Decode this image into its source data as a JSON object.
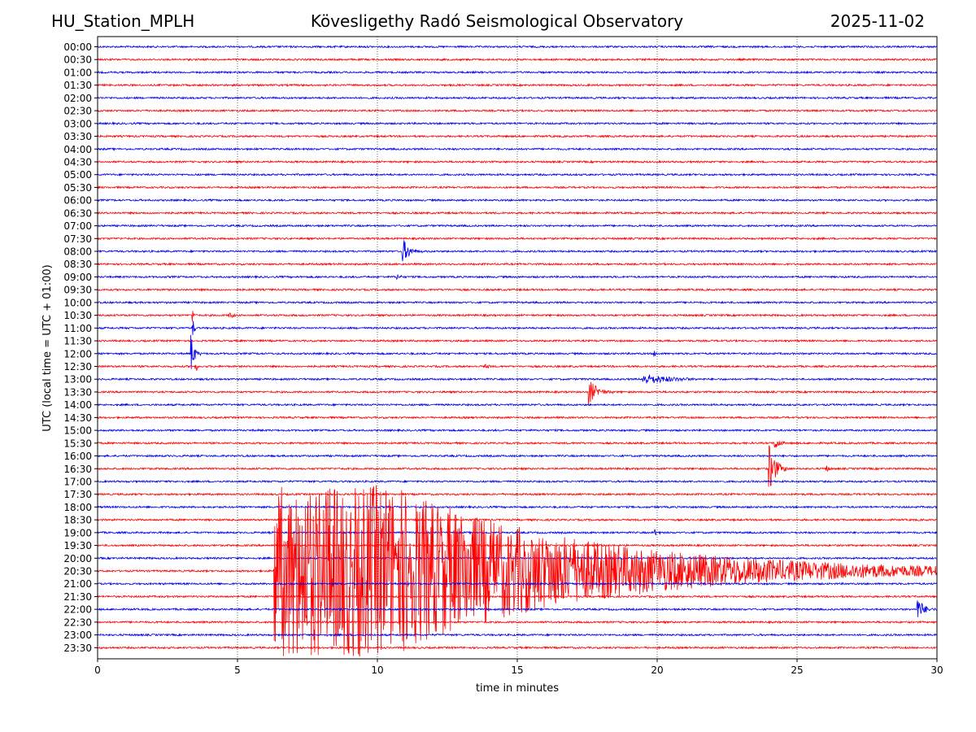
{
  "header": {
    "station": "HU_Station_MPLH",
    "observatory": "Kövesligethy Radó Seismological Observatory",
    "date": "2025-11-02"
  },
  "colors": {
    "even_trace": "#0000ee",
    "odd_trace": "#ff0000",
    "axes": "#000000",
    "grid": "#000000"
  },
  "chart_data": {
    "type": "line",
    "title": "Kövesligethy Radó Seismological Observatory",
    "xlabel": "time in minutes",
    "ylabel": "UTC (local time = UTC + 01:00)",
    "xlim": [
      0,
      30
    ],
    "x_ticks": [
      "0",
      "5",
      "10",
      "15",
      "20",
      "25",
      "30"
    ],
    "x_grid_minutes": [
      5,
      10,
      15,
      20,
      25
    ],
    "row_minutes": 30,
    "rows": [
      "00:00",
      "00:30",
      "01:00",
      "01:30",
      "02:00",
      "02:30",
      "03:00",
      "03:30",
      "04:00",
      "04:30",
      "05:00",
      "05:30",
      "06:00",
      "06:30",
      "07:00",
      "07:30",
      "08:00",
      "08:30",
      "09:00",
      "09:30",
      "10:00",
      "10:30",
      "11:00",
      "11:30",
      "12:00",
      "12:30",
      "13:00",
      "13:30",
      "14:00",
      "14:30",
      "15:00",
      "15:30",
      "16:00",
      "16:30",
      "17:00",
      "17:30",
      "18:00",
      "18:30",
      "19:00",
      "19:30",
      "20:00",
      "20:30",
      "21:00",
      "21:30",
      "22:00",
      "22:30",
      "23:00",
      "23:30"
    ],
    "events": [
      {
        "row": "08:00",
        "start_min": 10.9,
        "duration_min": 0.7,
        "peak_rows": 1.1
      },
      {
        "row": "09:00",
        "start_min": 10.7,
        "duration_min": 0.5,
        "peak_rows": 0.3
      },
      {
        "row": "10:30",
        "start_min": 4.7,
        "duration_min": 0.6,
        "peak_rows": 0.3
      },
      {
        "row": "10:30",
        "start_min": 3.4,
        "duration_min": 0.2,
        "peak_rows": 0.5
      },
      {
        "row": "11:00",
        "start_min": 3.4,
        "duration_min": 0.2,
        "peak_rows": 0.8
      },
      {
        "row": "12:00",
        "start_min": 3.35,
        "duration_min": 0.35,
        "peak_rows": 1.5
      },
      {
        "row": "12:00",
        "start_min": 19.9,
        "duration_min": 0.3,
        "peak_rows": 0.3
      },
      {
        "row": "12:30",
        "start_min": 3.5,
        "duration_min": 0.15,
        "peak_rows": 0.8
      },
      {
        "row": "12:30",
        "start_min": 13.8,
        "duration_min": 1.0,
        "peak_rows": 0.2
      },
      {
        "row": "13:00",
        "start_min": 19.5,
        "duration_min": 3.5,
        "peak_rows": 0.45
      },
      {
        "row": "13:30",
        "start_min": 17.55,
        "duration_min": 0.9,
        "peak_rows": 1.1
      },
      {
        "row": "15:30",
        "start_min": 24.2,
        "duration_min": 0.6,
        "peak_rows": 0.6
      },
      {
        "row": "16:30",
        "start_min": 24.0,
        "duration_min": 0.7,
        "peak_rows": 2.0
      },
      {
        "row": "16:30",
        "start_min": 26.0,
        "duration_min": 0.5,
        "peak_rows": 0.35
      },
      {
        "row": "19:00",
        "start_min": 19.9,
        "duration_min": 0.6,
        "peak_rows": 0.3
      },
      {
        "row": "20:30",
        "start_min": 6.3,
        "duration_min": 23.7,
        "peak_rows": 6.7
      },
      {
        "row": "22:00",
        "start_min": 29.3,
        "duration_min": 0.7,
        "peak_rows": 1.0
      }
    ]
  }
}
